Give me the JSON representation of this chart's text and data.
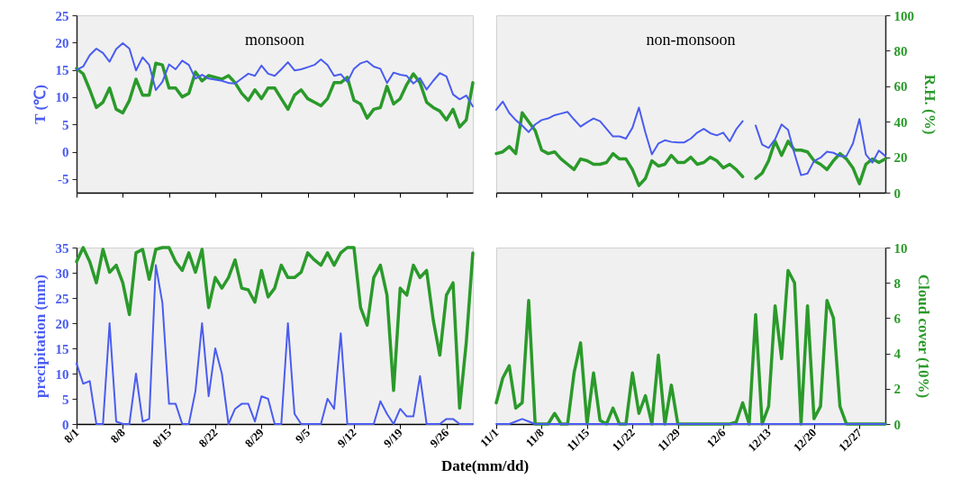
{
  "chart_data": [
    {
      "type": "line",
      "ylabel": "T (℃)",
      "annotations": [
        "monsoon"
      ],
      "legend": false,
      "grid": false,
      "x": [
        "--08-01",
        "--08-02",
        "--08-03",
        "--08-04",
        "--08-05",
        "--08-06",
        "--08-07",
        "--08-08",
        "--08-09",
        "--08-10",
        "--08-11",
        "--08-12",
        "--08-13",
        "--08-14",
        "--08-15",
        "--08-16",
        "--08-17",
        "--08-18",
        "--08-19",
        "--08-20",
        "--08-21",
        "--08-22",
        "--08-23",
        "--08-24",
        "--08-25",
        "--08-26",
        "--08-27",
        "--08-28",
        "--08-29",
        "--08-30",
        "--08-31",
        "--09-01",
        "--09-02",
        "--09-03",
        "--09-04",
        "--09-05",
        "--09-06",
        "--09-07",
        "--09-08",
        "--09-09",
        "--09-10",
        "--09-11",
        "--09-12",
        "--09-13",
        "--09-14",
        "--09-15",
        "--09-16",
        "--09-17",
        "--09-18",
        "--09-19",
        "--09-20",
        "--09-21",
        "--09-22",
        "--09-23",
        "--09-24",
        "--09-25",
        "--09-26",
        "--09-27",
        "--09-28",
        "--09-29",
        "--09-30"
      ],
      "xlim": [
        "--08-01",
        "--09-30"
      ],
      "tick_labels": "y",
      "xticks": [
        {
          "value": "--08-01",
          "label": "8/1"
        },
        {
          "value": "--08-08",
          "label": "8/8"
        },
        {
          "value": "--08-15",
          "label": "8/15"
        },
        {
          "value": "--08-22",
          "label": "8/22"
        },
        {
          "value": "--08-29",
          "label": "8/29"
        },
        {
          "value": "--09-05",
          "label": "9/5"
        },
        {
          "value": "--09-12",
          "label": "9/12"
        },
        {
          "value": "--09-19",
          "label": "9/19"
        },
        {
          "value": "--09-26",
          "label": "9/26"
        }
      ],
      "ylim": [
        -7.5,
        25
      ],
      "yticks": [
        -5,
        0,
        5,
        10,
        15,
        20,
        25
      ],
      "y2lim": [
        0,
        100
      ],
      "series": [
        {
          "color": "#4a5cf0",
          "values": [
            15,
            15.6,
            17.7,
            18.9,
            18.1,
            16.5,
            18.8,
            19.9,
            18.9,
            14.9,
            17.3,
            15.9,
            11.3,
            12.8,
            16,
            15.1,
            16.7,
            15.9,
            13.4,
            14.1,
            13.4,
            13.2,
            13,
            12.6,
            12.5,
            13.4,
            14.3,
            13.9,
            15.8,
            14.3,
            13.9,
            15.1,
            16.4,
            14.9,
            15.1,
            15.5,
            15.9,
            16.9,
            15.9,
            13.9,
            14.2,
            12.8,
            15.2,
            16.2,
            16.6,
            15.6,
            15.2,
            12.6,
            14.5,
            14.1,
            13.9,
            12.5,
            13.5,
            11.4,
            13,
            14.4,
            13.8,
            10.5,
            9.6,
            10.3,
            8.3
          ]
        },
        {
          "color": "#2a9a2a",
          "axis": "y2",
          "values": [
            70,
            67,
            58,
            48,
            51,
            59,
            47,
            45,
            52,
            64,
            55,
            55,
            73,
            72,
            59,
            59,
            54,
            56,
            68,
            63,
            66,
            65,
            64,
            66,
            62,
            56,
            52,
            58,
            53,
            59,
            59,
            53,
            47,
            55,
            58,
            53,
            51,
            49,
            53,
            62,
            62,
            65,
            52,
            50,
            42,
            47,
            48,
            60,
            50,
            53,
            61,
            67,
            62,
            51,
            48,
            46,
            41,
            47,
            37,
            41,
            62
          ]
        }
      ]
    },
    {
      "type": "line",
      "y2label": "R.H. (%)",
      "annotations": [
        "non-monsoon"
      ],
      "legend": false,
      "grid": false,
      "x": [
        "--11-01",
        "--11-02",
        "--11-03",
        "--11-04",
        "--11-05",
        "--11-06",
        "--11-07",
        "--11-08",
        "--11-09",
        "--11-10",
        "--11-11",
        "--11-12",
        "--11-13",
        "--11-14",
        "--11-15",
        "--11-16",
        "--11-17",
        "--11-18",
        "--11-19",
        "--11-20",
        "--11-21",
        "--11-22",
        "--11-23",
        "--11-24",
        "--11-25",
        "--11-26",
        "--11-27",
        "--11-28",
        "--11-29",
        "--11-30",
        "--12-01",
        "--12-02",
        "--12-03",
        "--12-04",
        "--12-05",
        "--12-06",
        "--12-07",
        "--12-08",
        "--12-09",
        "--12-10",
        "--12-11",
        "--12-12",
        "--12-13",
        "--12-14",
        "--12-15",
        "--12-16",
        "--12-17",
        "--12-18",
        "--12-19",
        "--12-20",
        "--12-21",
        "--12-22",
        "--12-23",
        "--12-24",
        "--12-25",
        "--12-26",
        "--12-27",
        "--12-28",
        "--12-29",
        "--12-30",
        "--12-31"
      ],
      "xlim": [
        "--11-01",
        "--12-31"
      ],
      "tick_labels": "y",
      "xticks": [
        {
          "value": "--11-01",
          "label": "11/1"
        },
        {
          "value": "--11-08",
          "label": "11/8"
        },
        {
          "value": "--11-15",
          "label": "11/15"
        },
        {
          "value": "--11-22",
          "label": "11/22"
        },
        {
          "value": "--11-29",
          "label": "11/29"
        },
        {
          "value": "--12-06",
          "label": "12/6"
        },
        {
          "value": "--12-13",
          "label": "12/13"
        },
        {
          "value": "--12-20",
          "label": "12/20"
        },
        {
          "value": "--12-27",
          "label": "12/27"
        }
      ],
      "ylim": [
        -7.5,
        25
      ],
      "y2lim": [
        0,
        100
      ],
      "y2ticks": [
        0,
        20,
        40,
        60,
        80,
        100
      ],
      "series": [
        {
          "color": "#4a5cf0",
          "values": [
            7.7,
            9.2,
            7.1,
            5.8,
            4.8,
            3.6,
            5,
            5.8,
            6.1,
            6.7,
            7,
            7.3,
            5.9,
            4.6,
            5.4,
            6.1,
            5.6,
            4.2,
            2.8,
            2.8,
            2.4,
            4.4,
            8.1,
            3.5,
            -0.5,
            1.5,
            2.1,
            1.8,
            1.7,
            1.7,
            2.4,
            3.5,
            4.2,
            3.4,
            3,
            3.5,
            1.9,
            4.1,
            5.6,
            null,
            4.8,
            1.3,
            0.7,
            2.3,
            5,
            4,
            -0.4,
            -4.3,
            -4,
            -1.7,
            -1.1,
            0,
            -0.2,
            -0.8,
            -0.8,
            1.5,
            6,
            -0.5,
            -2,
            0.2,
            -0.8
          ]
        },
        {
          "color": "#2a9a2a",
          "axis": "y2",
          "values": [
            22,
            23,
            26,
            22,
            45,
            40,
            35,
            24,
            22,
            23,
            19,
            16,
            13,
            19,
            18,
            16,
            16,
            17,
            22,
            19,
            19,
            13,
            4,
            8,
            18,
            15,
            16,
            21,
            17,
            17,
            20,
            16,
            17,
            20,
            18,
            14,
            16,
            13,
            9,
            null,
            8,
            11,
            18,
            29,
            21,
            29,
            24,
            24,
            23,
            18,
            16,
            13,
            18,
            22,
            19,
            14,
            5,
            16,
            19,
            17,
            19
          ]
        }
      ]
    },
    {
      "type": "line",
      "ylabel": "precipitation (mm)",
      "xlabel": "Date(mm/dd)",
      "legend": false,
      "grid": false,
      "x": [
        "--08-01",
        "--08-02",
        "--08-03",
        "--08-04",
        "--08-05",
        "--08-06",
        "--08-07",
        "--08-08",
        "--08-09",
        "--08-10",
        "--08-11",
        "--08-12",
        "--08-13",
        "--08-14",
        "--08-15",
        "--08-16",
        "--08-17",
        "--08-18",
        "--08-19",
        "--08-20",
        "--08-21",
        "--08-22",
        "--08-23",
        "--08-24",
        "--08-25",
        "--08-26",
        "--08-27",
        "--08-28",
        "--08-29",
        "--08-30",
        "--08-31",
        "--09-01",
        "--09-02",
        "--09-03",
        "--09-04",
        "--09-05",
        "--09-06",
        "--09-07",
        "--09-08",
        "--09-09",
        "--09-10",
        "--09-11",
        "--09-12",
        "--09-13",
        "--09-14",
        "--09-15",
        "--09-16",
        "--09-17",
        "--09-18",
        "--09-19",
        "--09-20",
        "--09-21",
        "--09-22",
        "--09-23",
        "--09-24",
        "--09-25",
        "--09-26",
        "--09-27",
        "--09-28",
        "--09-29",
        "--09-30"
      ],
      "xlim": [
        "--08-01",
        "--09-30"
      ],
      "xticks": [
        {
          "value": "--08-01",
          "label": "8/1"
        },
        {
          "value": "--08-08",
          "label": "8/8"
        },
        {
          "value": "--08-15",
          "label": "8/15"
        },
        {
          "value": "--08-22",
          "label": "8/22"
        },
        {
          "value": "--08-29",
          "label": "8/29"
        },
        {
          "value": "--09-05",
          "label": "9/5"
        },
        {
          "value": "--09-12",
          "label": "9/12"
        },
        {
          "value": "--09-19",
          "label": "9/19"
        },
        {
          "value": "--09-26",
          "label": "9/26"
        }
      ],
      "ylim": [
        0,
        35
      ],
      "yticks": [
        0,
        5,
        10,
        15,
        20,
        25,
        30,
        35
      ],
      "y2lim": [
        0,
        10
      ],
      "series": [
        {
          "color": "#4a5cf0",
          "values": [
            12,
            8,
            8.5,
            0,
            0,
            20,
            0.5,
            0,
            0,
            10,
            0.5,
            1,
            31.5,
            24,
            4,
            4,
            0,
            0,
            6.5,
            20,
            5.5,
            15,
            10,
            0,
            3,
            4,
            4,
            0.5,
            5.5,
            5,
            0,
            0,
            20,
            2,
            0,
            0,
            0,
            0,
            5,
            3,
            18,
            0,
            0,
            0,
            0,
            0,
            4.5,
            2,
            0,
            3,
            1.5,
            1.5,
            9.5,
            0,
            0,
            0,
            1,
            1,
            0,
            0,
            0
          ]
        },
        {
          "color": "#2a9a2a",
          "axis": "y2",
          "values": [
            9.2,
            10,
            9.2,
            8,
            9.9,
            8.6,
            9,
            8,
            6.2,
            9.7,
            9.9,
            8.2,
            9.9,
            10,
            10,
            9.2,
            8.7,
            9.7,
            8.6,
            9.9,
            6.6,
            8.3,
            7.7,
            8.3,
            9.3,
            7.7,
            7.6,
            6.9,
            8.7,
            7.2,
            7.7,
            9,
            8.3,
            8.3,
            8.6,
            9.7,
            9.3,
            9,
            9.7,
            9,
            9.7,
            10,
            10,
            6.6,
            5.6,
            8.3,
            9,
            7.3,
            1.9,
            7.7,
            7.3,
            9,
            8.3,
            8.7,
            5.9,
            3.9,
            7.3,
            8,
            0.9,
            4.6,
            9.7
          ]
        }
      ]
    },
    {
      "type": "line",
      "y2label": "Cloud cover (10%)",
      "legend": false,
      "grid": false,
      "x": [
        "--11-01",
        "--11-02",
        "--11-03",
        "--11-04",
        "--11-05",
        "--11-06",
        "--11-07",
        "--11-08",
        "--11-09",
        "--11-10",
        "--11-11",
        "--11-12",
        "--11-13",
        "--11-14",
        "--11-15",
        "--11-16",
        "--11-17",
        "--11-18",
        "--11-19",
        "--11-20",
        "--11-21",
        "--11-22",
        "--11-23",
        "--11-24",
        "--11-25",
        "--11-26",
        "--11-27",
        "--11-28",
        "--11-29",
        "--11-30",
        "--12-01",
        "--12-02",
        "--12-03",
        "--12-04",
        "--12-05",
        "--12-06",
        "--12-07",
        "--12-08",
        "--12-09",
        "--12-10",
        "--12-11",
        "--12-12",
        "--12-13",
        "--12-14",
        "--12-15",
        "--12-16",
        "--12-17",
        "--12-18",
        "--12-19",
        "--12-20",
        "--12-21",
        "--12-22",
        "--12-23",
        "--12-24",
        "--12-25",
        "--12-26",
        "--12-27",
        "--12-28",
        "--12-29",
        "--12-30",
        "--12-31"
      ],
      "xlim": [
        "--11-01",
        "--12-31"
      ],
      "xticks": [
        {
          "value": "--11-01",
          "label": "11/1"
        },
        {
          "value": "--11-08",
          "label": "11/8"
        },
        {
          "value": "--11-15",
          "label": "11/15"
        },
        {
          "value": "--11-22",
          "label": "11/22"
        },
        {
          "value": "--11-29",
          "label": "11/29"
        },
        {
          "value": "--12-06",
          "label": "12/6"
        },
        {
          "value": "--12-13",
          "label": "12/13"
        },
        {
          "value": "--12-20",
          "label": "12/20"
        },
        {
          "value": "--12-27",
          "label": "12/27"
        }
      ],
      "ylim": [
        0,
        35
      ],
      "y2lim": [
        0,
        10
      ],
      "y2ticks": [
        0,
        2,
        4,
        6,
        8,
        10
      ],
      "series": [
        {
          "color": "#4a5cf0",
          "values": [
            0,
            0,
            0,
            0.5,
            1,
            0.5,
            0,
            0,
            0,
            0,
            0,
            0,
            0,
            0,
            0,
            0,
            0,
            0,
            0,
            0,
            0,
            0,
            0,
            0,
            0,
            0,
            0,
            0,
            0,
            0,
            0,
            0,
            0,
            0,
            0,
            0,
            0,
            0,
            0,
            0,
            0,
            0,
            0,
            0,
            0,
            0,
            0,
            0,
            0,
            0,
            0,
            0,
            0,
            0,
            0,
            0,
            0,
            0,
            0,
            0,
            0
          ]
        },
        {
          "color": "#2a9a2a",
          "axis": "y2",
          "values": [
            1.2,
            2.6,
            3.3,
            0.9,
            1.2,
            7,
            0,
            0,
            0,
            0.6,
            0,
            0,
            2.9,
            4.6,
            0,
            2.9,
            0.2,
            0,
            0.9,
            0,
            0,
            2.9,
            0.6,
            1.6,
            0,
            3.9,
            0,
            2.2,
            0,
            0,
            0,
            0,
            0,
            0,
            0,
            0,
            0,
            0.1,
            1.2,
            0,
            6.2,
            0,
            1,
            6.7,
            3.7,
            8.7,
            8,
            0,
            6.7,
            0.3,
            1,
            7,
            6,
            1,
            0,
            0,
            0,
            0,
            0,
            0,
            0
          ]
        }
      ]
    }
  ]
}
